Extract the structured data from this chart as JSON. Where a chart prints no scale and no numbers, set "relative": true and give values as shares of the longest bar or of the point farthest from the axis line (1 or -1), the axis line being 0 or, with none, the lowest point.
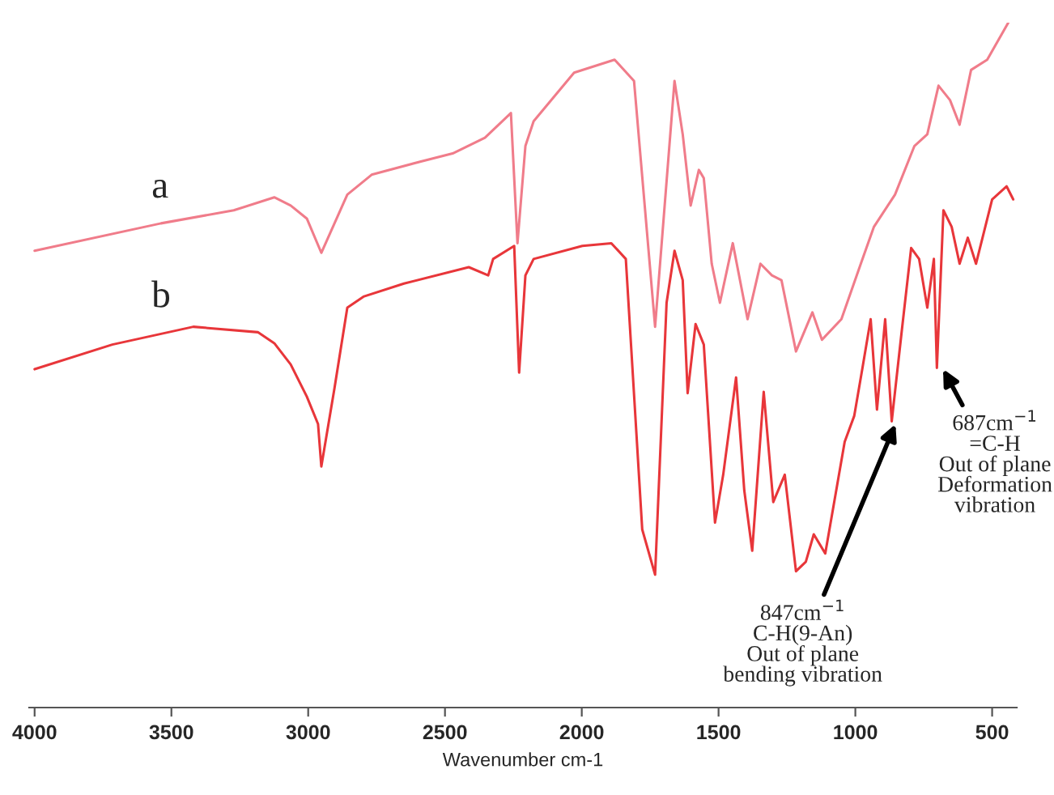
{
  "chart_data": {
    "type": "line",
    "relative": true,
    "xlabel": "Wavenumber cm-1",
    "xlim": [
      4020,
      410
    ],
    "xticks": [
      4000,
      3500,
      3000,
      2500,
      2000,
      1500,
      1000,
      500
    ],
    "grid": false,
    "legend": false,
    "marker": "none",
    "line_style": "solid",
    "series": [
      {
        "name": "a",
        "color": "#f07c8a",
        "x": [
          4000,
          3538,
          3272,
          3124,
          3064,
          3005,
          2952,
          2857,
          2768,
          2591,
          2472,
          2354,
          2259,
          2235,
          2206,
          2176,
          2028,
          1880,
          1809,
          1732,
          1661,
          1631,
          1602,
          1572,
          1554,
          1525,
          1495,
          1448,
          1394,
          1347,
          1305,
          1270,
          1217,
          1157,
          1122,
          1051,
          980,
          932,
          855,
          784,
          737,
          696,
          654,
          619,
          577,
          518,
          441
        ],
        "values": [
          0.667,
          0.707,
          0.726,
          0.745,
          0.733,
          0.714,
          0.664,
          0.749,
          0.778,
          0.797,
          0.809,
          0.832,
          0.868,
          0.678,
          0.82,
          0.856,
          0.927,
          0.946,
          0.915,
          0.556,
          0.915,
          0.837,
          0.733,
          0.785,
          0.773,
          0.648,
          0.591,
          0.678,
          0.567,
          0.648,
          0.631,
          0.624,
          0.52,
          0.577,
          0.537,
          0.567,
          0.648,
          0.702,
          0.749,
          0.82,
          0.837,
          0.908,
          0.887,
          0.851,
          0.931,
          0.946,
          1.0
        ]
      },
      {
        "name": "b",
        "color": "#e8363a",
        "x": [
          4000,
          3716,
          3420,
          3183,
          3124,
          3064,
          3005,
          2964,
          2952,
          2904,
          2857,
          2798,
          2650,
          2413,
          2342,
          2324,
          2247,
          2229,
          2206,
          2176,
          1998,
          1892,
          1839,
          1779,
          1732,
          1690,
          1661,
          1631,
          1613,
          1584,
          1554,
          1513,
          1483,
          1436,
          1406,
          1377,
          1335,
          1300,
          1258,
          1217,
          1181,
          1152,
          1110,
          1039,
          1004,
          974,
          944,
          921,
          891,
          867,
          832,
          796,
          767,
          737,
          713,
          702,
          678,
          648,
          619,
          589,
          559,
          500,
          447,
          423
        ],
        "values": [
          0.494,
          0.53,
          0.556,
          0.548,
          0.532,
          0.501,
          0.454,
          0.414,
          0.352,
          0.466,
          0.584,
          0.6,
          0.619,
          0.643,
          0.631,
          0.655,
          0.674,
          0.489,
          0.631,
          0.655,
          0.674,
          0.678,
          0.655,
          0.26,
          0.194,
          0.591,
          0.667,
          0.624,
          0.459,
          0.56,
          0.53,
          0.27,
          0.34,
          0.482,
          0.317,
          0.229,
          0.461,
          0.3,
          0.34,
          0.199,
          0.213,
          0.253,
          0.225,
          0.388,
          0.426,
          0.496,
          0.567,
          0.435,
          0.567,
          0.418,
          0.544,
          0.671,
          0.655,
          0.584,
          0.655,
          0.496,
          0.726,
          0.702,
          0.648,
          0.686,
          0.648,
          0.742,
          0.761,
          0.742
        ]
      }
    ],
    "annotations": [
      {
        "text": "847cm$^{−1}$\nC-H(9-An)\nOut of plane\nbending vibration",
        "x": 847,
        "y": 0.42
      },
      {
        "text": "687cm$^{−1}$\n=C-H\nOut of plane\nDeformation\nvibration",
        "x": 687,
        "y": 0.5
      }
    ]
  }
}
